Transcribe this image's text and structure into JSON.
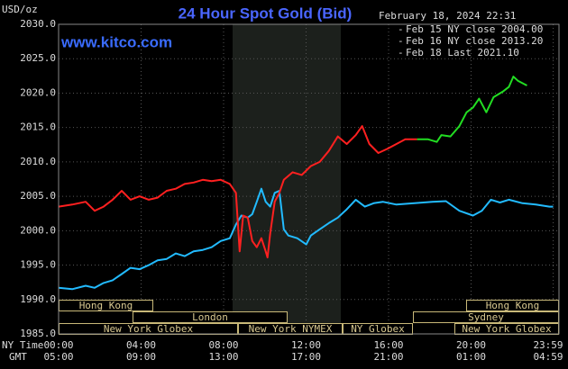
{
  "chart_data": {
    "type": "line",
    "title": "24 Hour Spot Gold (Bid)",
    "timestamp": "February 18, 2024 22:31",
    "watermark": "www.kitco.com",
    "y_label": "USD/oz",
    "x_row_labels": [
      "NY Time",
      "GMT"
    ],
    "xlim": [
      0,
      24
    ],
    "xticks": [
      {
        "value": 0,
        "label": "00:00"
      },
      {
        "value": 4,
        "label": "04:00"
      },
      {
        "value": 8,
        "label": "08:00"
      },
      {
        "value": 12,
        "label": "12:00"
      },
      {
        "value": 16,
        "label": "16:00"
      },
      {
        "value": 20,
        "label": "20:00"
      },
      {
        "value": 23.98,
        "label": "23:59"
      }
    ],
    "gmt_labels": [
      "05:00",
      "09:00",
      "13:00",
      "17:00",
      "21:00",
      "01:00",
      "04:59"
    ],
    "ylim": [
      1985,
      2030
    ],
    "yticks": [
      {
        "value": 1985,
        "label": "1985.0"
      },
      {
        "value": 1990,
        "label": "1990.0"
      },
      {
        "value": 1995,
        "label": "1995.0"
      },
      {
        "value": 2000,
        "label": "2000.0"
      },
      {
        "value": 2005,
        "label": "2005.0"
      },
      {
        "value": 2010,
        "label": "2010.0"
      },
      {
        "value": 2015,
        "label": "2015.0"
      },
      {
        "value": 2020,
        "label": "2020.0"
      },
      {
        "value": 2025,
        "label": "2025.0"
      },
      {
        "value": 2030,
        "label": "2030.0"
      }
    ],
    "grid": true,
    "sessions": [
      "Hong Kong",
      "Hong Kong",
      "London",
      "Sydney",
      "New York Globex",
      "New York NYMEX",
      "NY Globex",
      "New York Globex"
    ],
    "series": [
      {
        "name": "Feb 15 NY close 2004.00",
        "color": "#22bbff",
        "x": [
          0,
          0.66,
          1.31,
          1.75,
          2.18,
          2.62,
          3.06,
          3.49,
          3.93,
          4.37,
          4.8,
          5.24,
          5.68,
          6.11,
          6.55,
          6.99,
          7.42,
          7.86,
          8.3,
          8.6,
          8.86,
          9.17,
          9.39,
          9.61,
          9.83,
          10.04,
          10.26,
          10.48,
          10.7,
          10.92,
          11.14,
          11.57,
          12.01,
          12.23,
          12.66,
          13.1,
          13.54,
          13.97,
          14.41,
          14.85,
          15.28,
          15.72,
          16.38,
          17.25,
          18.12,
          18.78,
          19.43,
          20.09,
          20.52,
          20.96,
          21.4,
          21.83,
          22.49,
          23.14,
          23.8,
          23.98
        ],
        "values": [
          1991.7,
          1991.5,
          1992,
          1991.7,
          1992.4,
          1992.8,
          1993.7,
          1994.6,
          1994.4,
          1995,
          1995.7,
          1995.9,
          1996.7,
          1996.3,
          1997,
          1997.2,
          1997.6,
          1998.5,
          1998.9,
          2000.9,
          2002.2,
          2001.9,
          2002.4,
          2004.2,
          2006.1,
          2004.2,
          2003.5,
          2005.5,
          2005.8,
          2000.2,
          1999.3,
          1998.9,
          1998,
          1999.3,
          2000.2,
          2001.1,
          2001.9,
          2003.1,
          2004.5,
          2003.5,
          2004,
          2004.2,
          2003.8,
          2004,
          2004.2,
          2004.3,
          2002.9,
          2002.2,
          2002.9,
          2004.5,
          2004.1,
          2004.5,
          2004,
          2003.8,
          2003.5,
          2003.5
        ]
      },
      {
        "name": "Feb 16 NY close 2013.20",
        "color": "#ff2020",
        "x": [
          0,
          0.66,
          1.31,
          1.75,
          2.18,
          2.62,
          3.06,
          3.49,
          3.93,
          4.37,
          4.8,
          5.24,
          5.68,
          6.11,
          6.55,
          6.99,
          7.42,
          7.86,
          8.3,
          8.6,
          8.78,
          8.95,
          9.17,
          9.39,
          9.61,
          9.83,
          10.04,
          10.13,
          10.26,
          10.48,
          10.7,
          10.92,
          11.35,
          11.79,
          12.23,
          12.66,
          13.1,
          13.54,
          13.97,
          14.41,
          14.72,
          15.07,
          15.5,
          15.94,
          16.38,
          16.81,
          17.25,
          17.38
        ],
        "values": [
          2003.5,
          2003.8,
          2004.2,
          2002.9,
          2003.5,
          2004.5,
          2005.8,
          2004.5,
          2005,
          2004.5,
          2004.8,
          2005.8,
          2006.1,
          2006.8,
          2007,
          2007.4,
          2007.2,
          2007.4,
          2006.8,
          2005.5,
          1997,
          2002.2,
          2001.9,
          1998.5,
          1997.6,
          1998.9,
          1997,
          1996.1,
          1999.6,
          2004.2,
          2005.5,
          2007.4,
          2008.5,
          2008.1,
          2009.4,
          2010,
          2011.6,
          2013.7,
          2012.6,
          2013.9,
          2015.2,
          2012.6,
          2011.3,
          2011.9,
          2012.6,
          2013.3,
          2013.3,
          2013.3
        ]
      },
      {
        "name": "Feb 18 Last 2021.10",
        "color": "#22dd22",
        "x": [
          17.38,
          17.9,
          18.34,
          18.56,
          19,
          19.43,
          19.78,
          20.09,
          20.39,
          20.74,
          21.09,
          21.53,
          21.83,
          22.05,
          22.27,
          22.71
        ],
        "values": [
          2013.3,
          2013.3,
          2012.9,
          2013.9,
          2013.7,
          2015.2,
          2017.2,
          2017.9,
          2019.2,
          2017.2,
          2019.4,
          2020.2,
          2020.9,
          2022.4,
          2021.8,
          2021.1
        ]
      }
    ]
  }
}
